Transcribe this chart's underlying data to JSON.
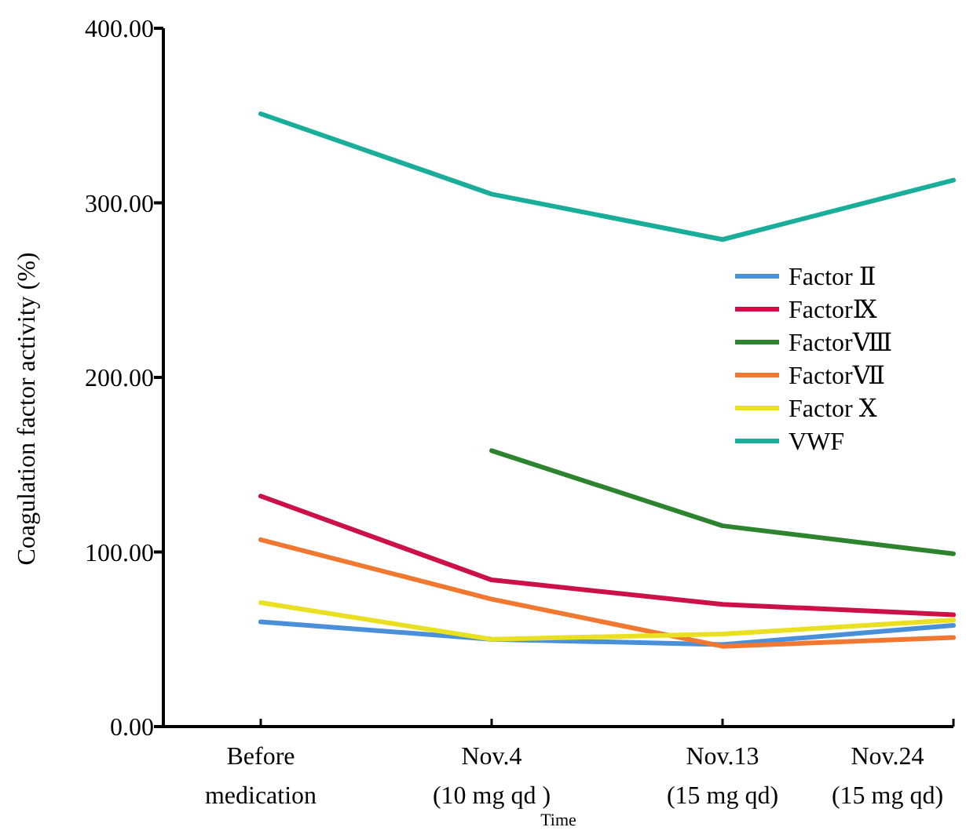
{
  "chart_data": {
    "type": "line",
    "categories": [
      "Before\nmedication",
      "Nov.4\n(10 mg qd )",
      "Nov.13\n(15 mg qd)",
      "Nov.24\n(15 mg qd)"
    ],
    "series": [
      {
        "name": "Factor Ⅱ",
        "color": "#4a90d9",
        "values": [
          60,
          50,
          47,
          58
        ]
      },
      {
        "name": "FactorⅨ",
        "color": "#cc1048",
        "values": [
          132,
          84,
          70,
          64
        ]
      },
      {
        "name": "FactorⅧ",
        "color": "#2e842e",
        "values": [
          null,
          158,
          115,
          99
        ]
      },
      {
        "name": "FactorⅦ",
        "color": "#f07830",
        "values": [
          107,
          73,
          46,
          51
        ]
      },
      {
        "name": "Factor Ⅹ",
        "color": "#e8e020",
        "values": [
          71,
          50,
          53,
          61
        ]
      },
      {
        "name": "VWF",
        "color": "#1aae9a",
        "values": [
          351,
          305,
          279,
          313
        ]
      }
    ],
    "xlabel": "Time",
    "ylabel": "Coagulation factor activity (%)",
    "ylim": [
      0,
      400
    ],
    "yticks": [
      {
        "value": 0,
        "label": "0.00"
      },
      {
        "value": 100,
        "label": "100.00"
      },
      {
        "value": 200,
        "label": "200.00"
      },
      {
        "value": 300,
        "label": "300.00"
      },
      {
        "value": 400,
        "label": "400.00"
      }
    ],
    "grid": false,
    "legend": "right",
    "marker": "none",
    "line_style": "solid"
  }
}
